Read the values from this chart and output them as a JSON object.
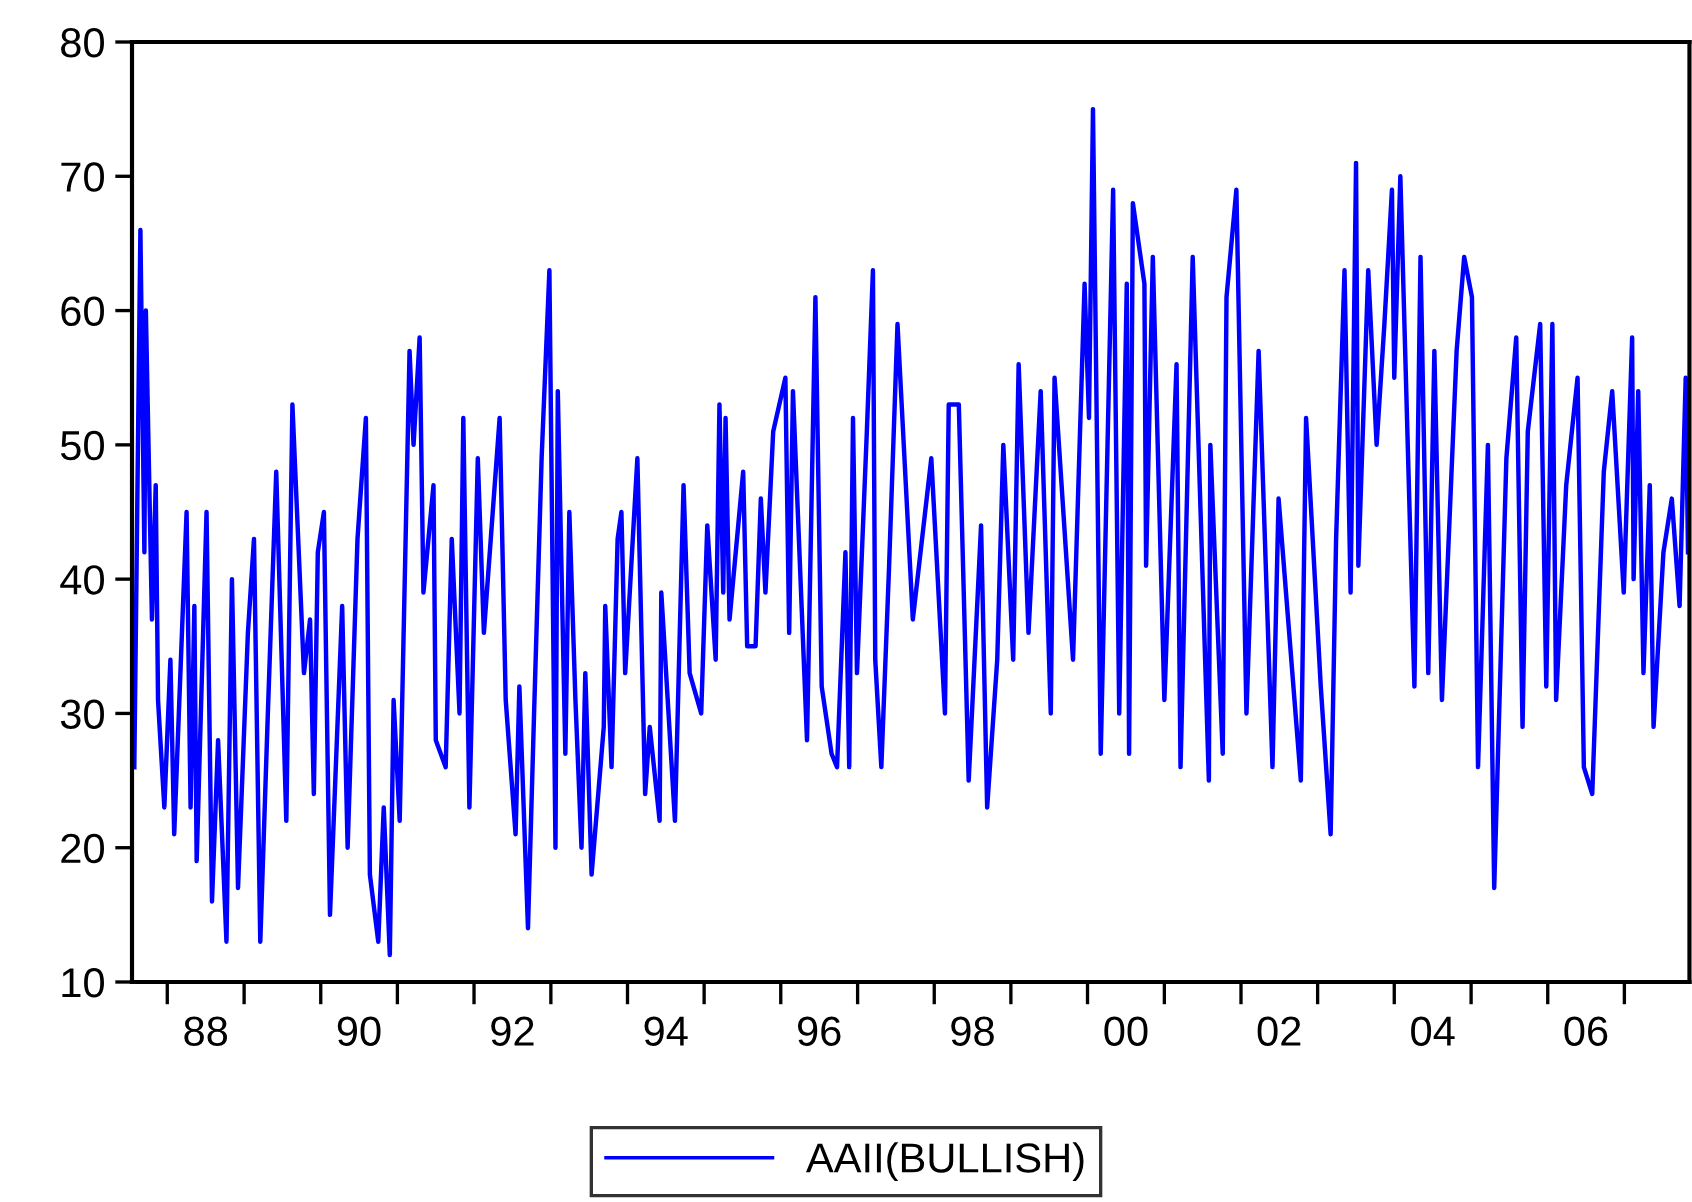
{
  "chart_data": {
    "type": "line",
    "x": [
      "1987-07-28",
      "1987-08-26",
      "1987-09-14",
      "1987-09-21",
      "1987-10-20",
      "1987-11-07",
      "1987-11-18",
      "1987-12-18",
      "1988-01-16",
      "1988-02-03",
      "1988-04-02",
      "1988-04-21",
      "1988-05-09",
      "1988-05-20",
      "1988-07-06",
      "1988-08-01",
      "1988-08-30",
      "1988-10-09",
      "1988-11-04",
      "1988-12-03",
      "1989-01-19",
      "1989-02-17",
      "1989-03-19",
      "1989-04-24",
      "1989-06-03",
      "1989-07-21",
      "1989-08-19",
      "1989-10-13",
      "1989-11-11",
      "1989-11-29",
      "1989-12-18",
      "1990-01-16",
      "1990-02-14",
      "1990-04-13",
      "1990-05-09",
      "1990-06-25",
      "1990-08-04",
      "1990-08-23",
      "1990-10-02",
      "1990-10-28",
      "1990-11-26",
      "1990-12-14",
      "1991-01-12",
      "1991-02-28",
      "1991-03-19",
      "1991-04-17",
      "1991-05-05",
      "1991-06-22",
      "1991-07-03",
      "1991-08-19",
      "1991-09-17",
      "1991-10-24",
      "1991-11-11",
      "1991-12-10",
      "1992-01-19",
      "1992-02-17",
      "1992-05-02",
      "1992-05-31",
      "1992-07-17",
      "1992-08-04",
      "1992-09-14",
      "1992-10-13",
      "1992-11-18",
      "1992-12-25",
      "1993-01-23",
      "1993-02-03",
      "1993-03-11",
      "1993-03-30",
      "1993-04-28",
      "1993-05-27",
      "1993-06-14",
      "1993-07-14",
      "1993-09-10",
      "1993-09-17",
      "1993-10-17",
      "1993-11-15",
      "1993-12-03",
      "1993-12-21",
      "1994-02-17",
      "1994-03-26",
      "1994-04-17",
      "1994-06-03",
      "1994-06-11",
      "1994-08-15",
      "1994-09-25",
      "1994-10-24",
      "1994-12-18",
      "1995-01-16",
      "1995-02-25",
      "1995-03-15",
      "1995-04-02",
      "1995-04-13",
      "1995-05-02",
      "1995-07-06",
      "1995-07-25",
      "1995-09-03",
      "1995-09-28",
      "1995-10-20",
      "1995-11-26",
      "1996-01-23",
      "1996-02-10",
      "1996-02-28",
      "1996-05-05",
      "1996-06-14",
      "1996-07-14",
      "1996-08-30",
      "1996-09-25",
      "1996-11-04",
      "1996-11-22",
      "1996-12-10",
      "1996-12-29",
      "1997-02-14",
      "1997-03-15",
      "1997-03-26",
      "1997-04-24",
      "1997-05-31",
      "1997-07-10",
      "1997-09-21",
      "1997-12-18",
      "1998-02-21",
      "1998-03-11",
      "1998-04-28",
      "1998-06-14",
      "1998-08-12",
      "1998-09-10",
      "1998-10-28",
      "1998-11-26",
      "1999-01-12",
      "1999-02-07",
      "1999-03-26",
      "1999-05-23",
      "1999-07-10",
      "1999-07-28",
      "1999-10-24",
      "1999-12-18",
      "2000-01-08",
      "2000-01-27",
      "2000-03-04",
      "2000-05-02",
      "2000-05-31",
      "2000-07-06",
      "2000-07-17",
      "2000-08-04",
      "2000-09-28",
      "2000-10-06",
      "2000-11-07",
      "2001-01-01",
      "2001-02-28",
      "2001-03-19",
      "2001-05-16",
      "2001-08-01",
      "2001-08-08",
      "2001-10-06",
      "2001-10-24",
      "2001-12-10",
      "2002-01-27",
      "2002-03-26",
      "2002-05-31",
      "2002-06-29",
      "2002-10-13",
      "2002-11-07",
      "2003-01-16",
      "2003-03-04",
      "2003-03-30",
      "2003-05-09",
      "2003-06-07",
      "2003-07-03",
      "2003-07-14",
      "2003-08-30",
      "2003-10-09",
      "2003-11-15",
      "2003-12-21",
      "2004-01-01",
      "2004-01-30",
      "2004-04-06",
      "2004-05-05",
      "2004-06-11",
      "2004-07-10",
      "2004-08-15",
      "2004-10-24",
      "2004-11-29",
      "2005-01-05",
      "2005-02-03",
      "2005-03-22",
      "2005-04-21",
      "2005-06-18",
      "2005-08-04",
      "2005-09-03",
      "2005-09-28",
      "2005-11-26",
      "2005-12-25",
      "2006-01-23",
      "2006-02-10",
      "2006-03-30",
      "2006-05-23",
      "2006-06-22",
      "2006-08-01",
      "2006-09-25",
      "2006-11-04",
      "2006-12-29",
      "2007-02-07",
      "2007-02-14",
      "2007-03-08",
      "2007-04-02",
      "2007-05-02",
      "2007-05-20",
      "2007-07-06",
      "2007-08-15",
      "2007-09-21",
      "2007-10-20",
      "2007-10-31"
    ],
    "series": [
      {
        "name": "AAII(BULLISH)",
        "color": "#0000ff",
        "values": [
          26,
          66,
          42,
          60,
          37,
          47,
          31,
          23,
          34,
          21,
          45,
          23,
          38,
          19,
          45,
          16,
          28,
          13,
          40,
          17,
          36,
          43,
          13,
          30,
          48,
          22,
          53,
          33,
          37,
          24,
          42,
          45,
          15,
          38,
          20,
          43,
          52,
          18,
          13,
          23,
          12,
          31,
          22,
          57,
          50,
          58,
          39,
          47,
          28,
          26,
          43,
          30,
          52,
          23,
          49,
          36,
          52,
          31,
          21,
          32,
          14,
          30,
          49,
          63,
          20,
          54,
          27,
          45,
          31,
          20,
          33,
          18,
          29,
          38,
          26,
          43,
          45,
          33,
          49,
          24,
          29,
          22,
          39,
          22,
          47,
          33,
          30,
          44,
          34,
          53,
          39,
          52,
          37,
          48,
          35,
          35,
          46,
          39,
          51,
          55,
          36,
          54,
          28,
          61,
          32,
          27,
          26,
          42,
          26,
          52,
          33,
          51,
          63,
          34,
          26,
          41,
          59,
          37,
          49,
          30,
          53,
          53,
          25,
          44,
          23,
          34,
          50,
          34,
          56,
          36,
          54,
          30,
          55,
          34,
          62,
          52,
          75,
          27,
          69,
          30,
          62,
          27,
          68,
          62,
          41,
          64,
          31,
          56,
          26,
          64,
          25,
          50,
          27,
          61,
          69,
          30,
          57,
          26,
          46,
          25,
          52,
          32,
          21,
          43,
          63,
          39,
          71,
          41,
          63,
          50,
          59,
          69,
          55,
          70,
          32,
          64,
          33,
          57,
          31,
          57,
          64,
          61,
          26,
          50,
          17,
          49,
          58,
          29,
          51,
          59,
          32,
          59,
          31,
          47,
          55,
          26,
          24,
          48,
          54,
          39,
          58,
          40,
          54,
          33,
          47,
          29,
          42,
          46,
          38,
          55,
          42
        ]
      }
    ],
    "xlim": [
      "1987-07-17",
      "2007-11-07"
    ],
    "xticks": [
      {
        "value": "1988",
        "label": null
      },
      {
        "value": "1988-07-02",
        "label": "88"
      },
      {
        "value": "1989",
        "label": null
      },
      {
        "value": "1990",
        "label": null
      },
      {
        "value": "1990-07-02",
        "label": "90"
      },
      {
        "value": "1991",
        "label": null
      },
      {
        "value": "1992",
        "label": null
      },
      {
        "value": "1992-07-02",
        "label": "92"
      },
      {
        "value": "1993",
        "label": null
      },
      {
        "value": "1994",
        "label": null
      },
      {
        "value": "1994-07-02",
        "label": "94"
      },
      {
        "value": "1995",
        "label": null
      },
      {
        "value": "1996",
        "label": null
      },
      {
        "value": "1996-07-02",
        "label": "96"
      },
      {
        "value": "1997",
        "label": null
      },
      {
        "value": "1998",
        "label": null
      },
      {
        "value": "1998-07-02",
        "label": "98"
      },
      {
        "value": "1999",
        "label": null
      },
      {
        "value": "2000",
        "label": null
      },
      {
        "value": "2000-07-02",
        "label": "00"
      },
      {
        "value": "2001",
        "label": null
      },
      {
        "value": "2002",
        "label": null
      },
      {
        "value": "2002-07-02",
        "label": "02"
      },
      {
        "value": "2003",
        "label": null
      },
      {
        "value": "2004",
        "label": null
      },
      {
        "value": "2004-07-02",
        "label": "04"
      },
      {
        "value": "2005",
        "label": null
      },
      {
        "value": "2006",
        "label": null
      },
      {
        "value": "2006-07-02",
        "label": "06"
      },
      {
        "value": "2007",
        "label": null
      }
    ],
    "ylim": [
      10,
      80
    ],
    "yticks": [
      10,
      20,
      30,
      40,
      50,
      60,
      70,
      80
    ],
    "grid": false,
    "legend": "bottom",
    "marker": "none",
    "line_style": "solid"
  }
}
